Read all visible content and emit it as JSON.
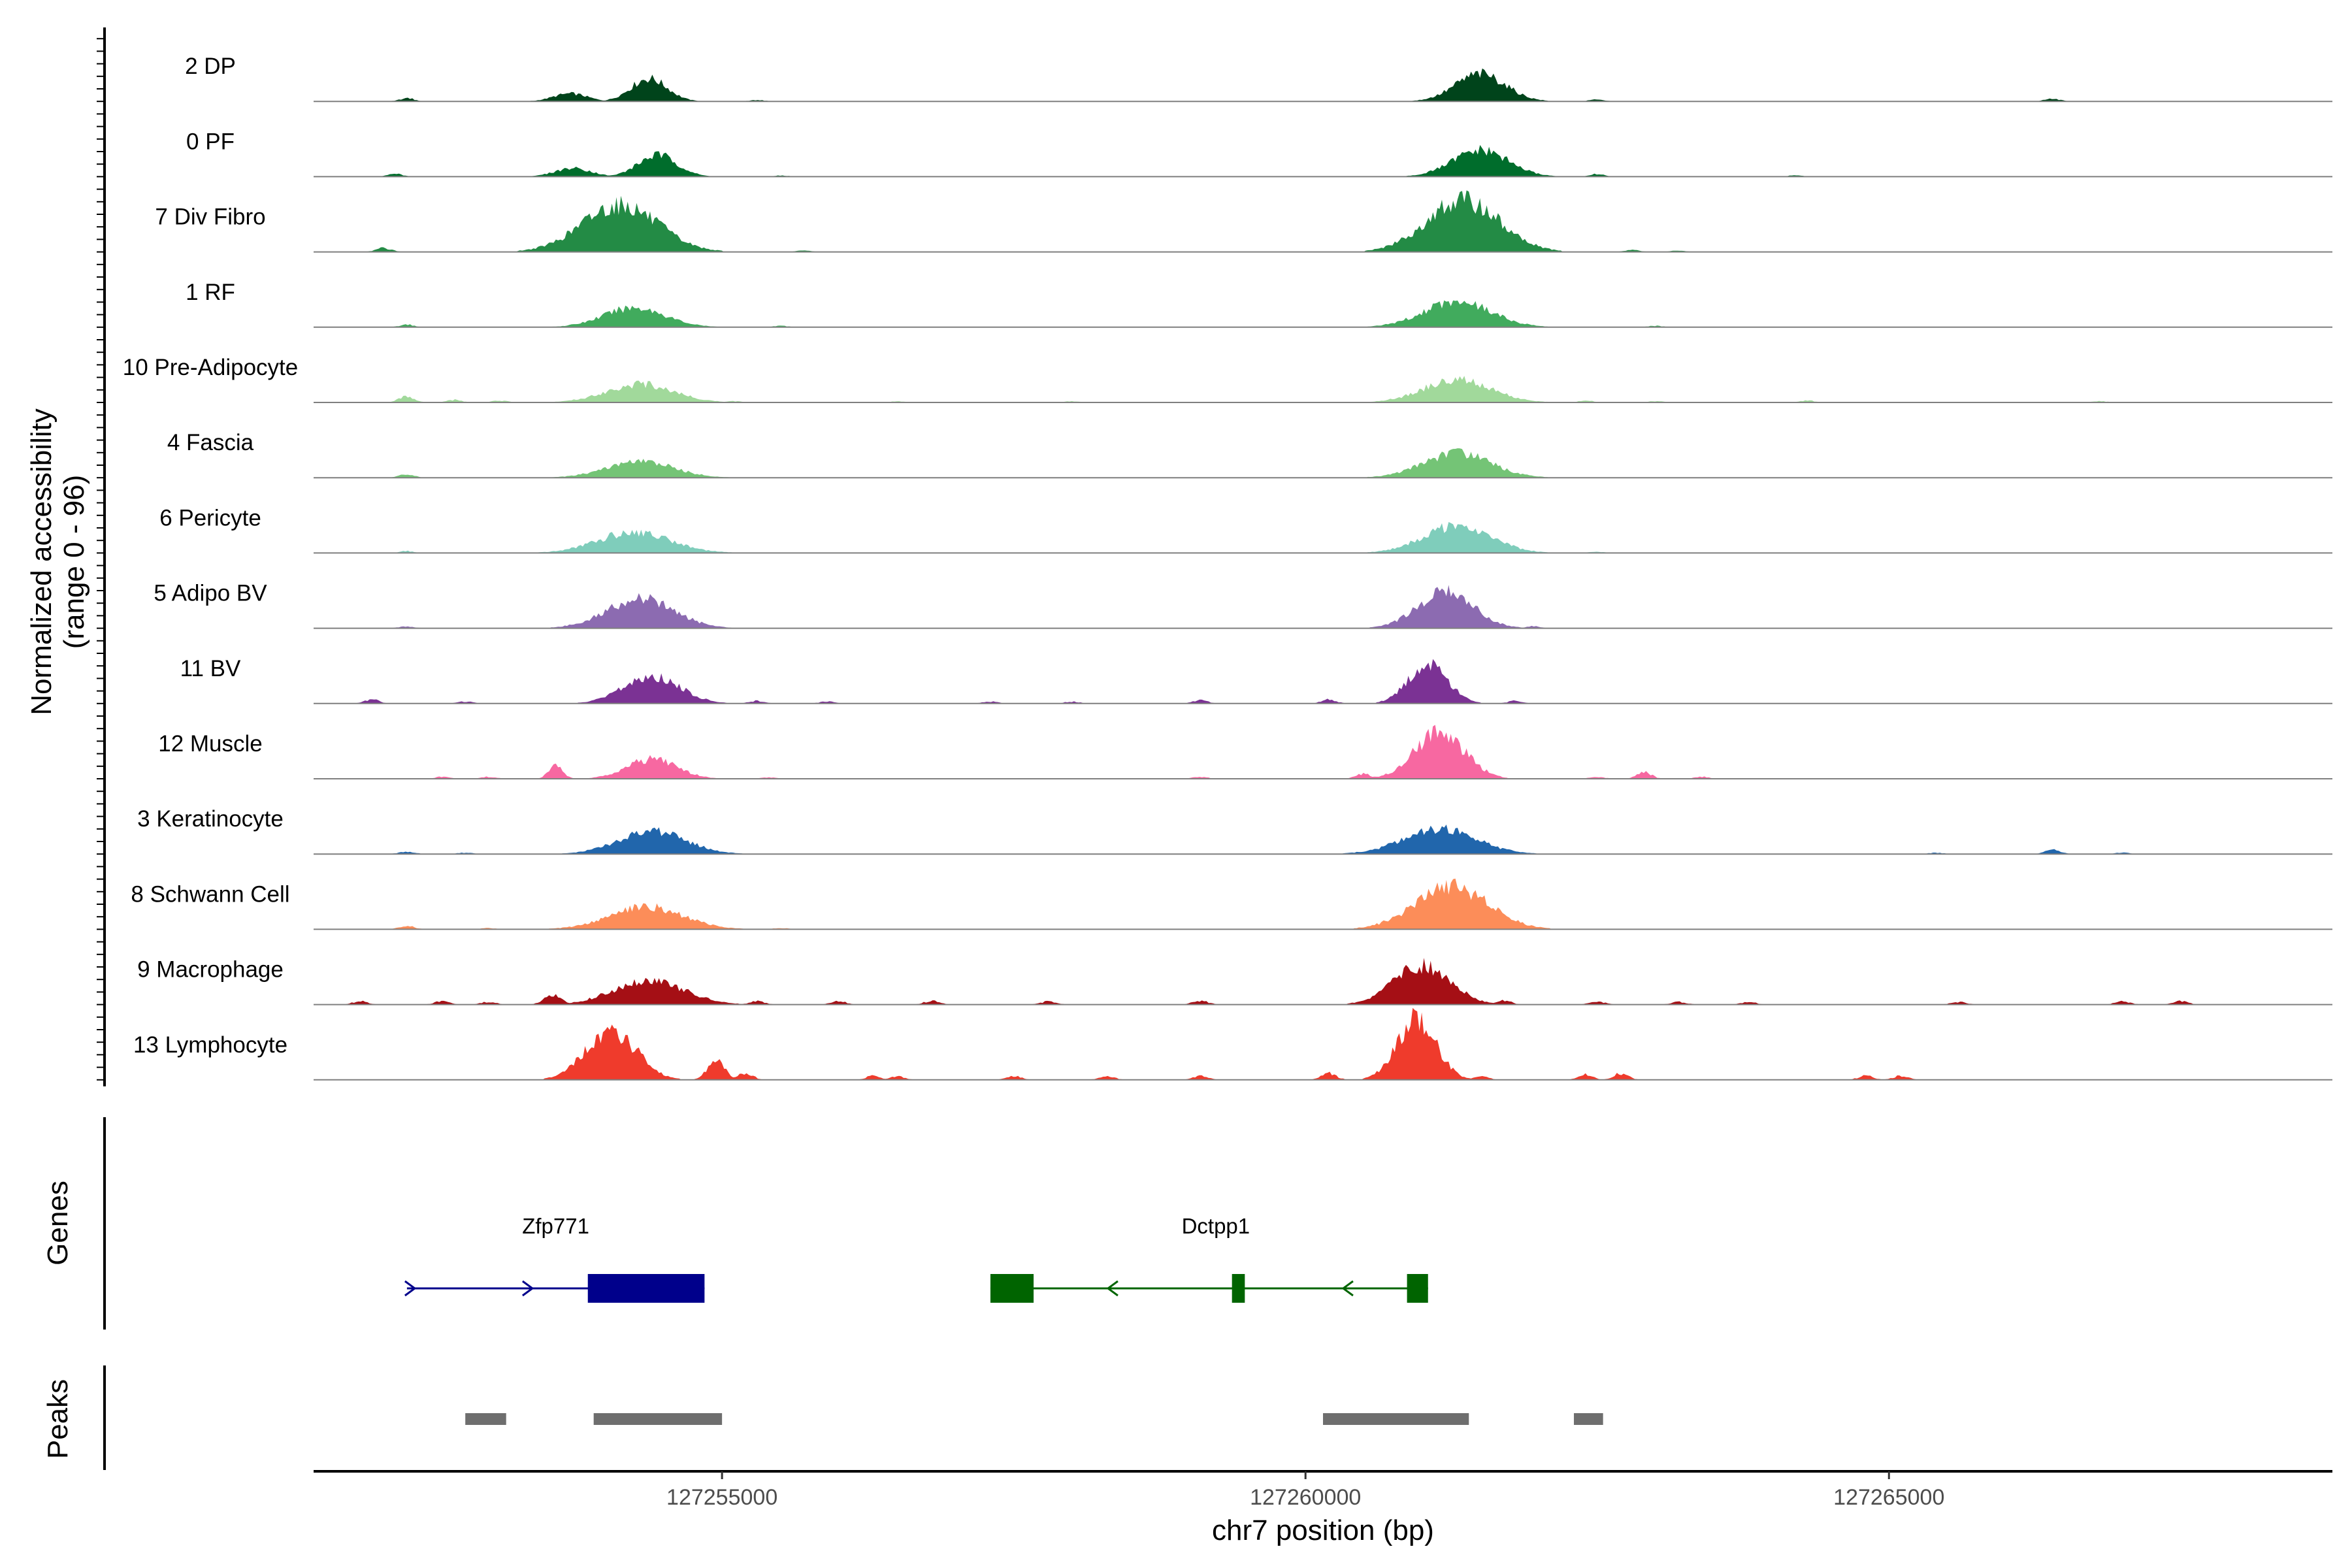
{
  "chart_data": {
    "type": "area",
    "title": "",
    "chromosome": "chr7",
    "xlabel": "chr7 position (bp)",
    "ylabel": "Normalized accessibility",
    "ylabel_range": "(range 0 - 96)",
    "y_range": [
      0,
      96
    ],
    "x_range": [
      127251500,
      127268800
    ],
    "x_ticks": [
      127255000,
      127260000,
      127265000
    ],
    "x_tick_labels": [
      "127255000",
      "127260000",
      "127265000"
    ],
    "tracks": [
      {
        "name": "2 DP",
        "color": "#00441b",
        "peaks": [
          [
            127253400,
            127254000,
            0.12
          ],
          [
            127254050,
            127254700,
            0.35
          ],
          [
            127254300,
            127254600,
            0.18
          ],
          [
            127261050,
            127261950,
            0.42
          ]
        ],
        "bumps": [
          [
            127252300,
            0.05
          ],
          [
            127255300,
            0.02
          ],
          [
            127262500,
            0.03
          ],
          [
            127266400,
            0.04
          ]
        ]
      },
      {
        "name": "0 PF",
        "color": "#006d2c",
        "peaks": [
          [
            127253400,
            127254050,
            0.13
          ],
          [
            127254100,
            127254800,
            0.33
          ],
          [
            127261000,
            127262000,
            0.4
          ]
        ],
        "bumps": [
          [
            127252200,
            0.04
          ],
          [
            127255500,
            0.02
          ],
          [
            127262500,
            0.04
          ],
          [
            127264200,
            0.02
          ]
        ]
      },
      {
        "name": "7 Div Fibro",
        "color": "#238b45",
        "peaks": [
          [
            127253450,
            127254800,
            0.72
          ],
          [
            127260700,
            127262000,
            0.78
          ]
        ],
        "bumps": [
          [
            127252100,
            0.06
          ],
          [
            127255700,
            0.02
          ],
          [
            127262800,
            0.03
          ],
          [
            127263200,
            0.02
          ]
        ]
      },
      {
        "name": "1 RF",
        "color": "#41ab5d",
        "peaks": [
          [
            127253700,
            127254800,
            0.3
          ],
          [
            127260700,
            127261900,
            0.4
          ]
        ],
        "bumps": [
          [
            127252300,
            0.04
          ],
          [
            127255500,
            0.02
          ],
          [
            127263000,
            0.02
          ]
        ]
      },
      {
        "name": "10 Pre-Adipocyte",
        "color": "#a1d99b",
        "peaks": [
          [
            127253700,
            127254900,
            0.28
          ],
          [
            127260700,
            127261900,
            0.35
          ]
        ],
        "bumps": [
          [
            127252300,
            0.1
          ],
          [
            127252700,
            0.04
          ],
          [
            127253100,
            0.03
          ],
          [
            127255100,
            0.02
          ],
          [
            127256500,
            0.02
          ],
          [
            127258000,
            0.02
          ],
          [
            127262400,
            0.03
          ],
          [
            127263000,
            0.02
          ],
          [
            127264300,
            0.03
          ],
          [
            127266800,
            0.02
          ]
        ]
      },
      {
        "name": "4 Fascia",
        "color": "#74c476",
        "peaks": [
          [
            127253700,
            127254900,
            0.25
          ],
          [
            127260700,
            127261900,
            0.38
          ]
        ],
        "bumps": [
          [
            127252300,
            0.05
          ]
        ]
      },
      {
        "name": "6 Pericyte",
        "color": "#7fcdbb",
        "peaks": [
          [
            127253600,
            127254900,
            0.32
          ],
          [
            127260700,
            127261900,
            0.42
          ]
        ],
        "bumps": [
          [
            127252300,
            0.03
          ],
          [
            127262500,
            0.02
          ]
        ]
      },
      {
        "name": "5 Adipo BV",
        "color": "#8c6bb1",
        "peaks": [
          [
            127253700,
            127254900,
            0.45
          ],
          [
            127260700,
            127261700,
            0.55
          ]
        ],
        "bumps": [
          [
            127252300,
            0.03
          ],
          [
            127261950,
            0.03
          ]
        ]
      },
      {
        "name": "11 BV",
        "color": "#7b3294",
        "peaks": [
          [
            127253900,
            127254900,
            0.42
          ],
          [
            127260700,
            127261400,
            0.62
          ]
        ],
        "bumps": [
          [
            127252000,
            0.06
          ],
          [
            127252800,
            0.03
          ],
          [
            127255300,
            0.04
          ],
          [
            127255900,
            0.03
          ],
          [
            127257300,
            0.03
          ],
          [
            127258000,
            0.03
          ],
          [
            127259100,
            0.05
          ],
          [
            127260200,
            0.06
          ],
          [
            127261800,
            0.04
          ]
        ]
      },
      {
        "name": "12 Muscle",
        "color": "#f768a1",
        "peaks": [
          [
            127253450,
            127253700,
            0.2
          ],
          [
            127253950,
            127254850,
            0.3
          ],
          [
            127260700,
            127261600,
            0.7
          ]
        ],
        "bumps": [
          [
            127252600,
            0.03
          ],
          [
            127253000,
            0.03
          ],
          [
            127255400,
            0.02
          ],
          [
            127259100,
            0.03
          ],
          [
            127260500,
            0.08
          ],
          [
            127262500,
            0.03
          ],
          [
            127262900,
            0.1
          ],
          [
            127263400,
            0.03
          ]
        ]
      },
      {
        "name": "3 Keratinocyte",
        "color": "#2166ac",
        "peaks": [
          [
            127253800,
            127255000,
            0.35
          ],
          [
            127260500,
            127261800,
            0.38
          ]
        ],
        "bumps": [
          [
            127252300,
            0.04
          ],
          [
            127252800,
            0.02
          ],
          [
            127265400,
            0.02
          ],
          [
            127266400,
            0.08
          ],
          [
            127267000,
            0.02
          ]
        ]
      },
      {
        "name": "8 Schwann Cell",
        "color": "#fc8d59",
        "peaks": [
          [
            127253700,
            127255000,
            0.35
          ],
          [
            127260600,
            127261900,
            0.65
          ]
        ],
        "bumps": [
          [
            127252300,
            0.05
          ],
          [
            127253000,
            0.02
          ],
          [
            127255500,
            0.02
          ]
        ]
      },
      {
        "name": "9 Macrophage",
        "color": "#a50f15",
        "peaks": [
          [
            127253400,
            127253700,
            0.15
          ],
          [
            127253750,
            127255000,
            0.38
          ],
          [
            127260500,
            127261500,
            0.6
          ]
        ],
        "bumps": [
          [
            127251900,
            0.05
          ],
          [
            127252600,
            0.05
          ],
          [
            127253000,
            0.04
          ],
          [
            127255300,
            0.05
          ],
          [
            127256000,
            0.05
          ],
          [
            127256800,
            0.06
          ],
          [
            127257800,
            0.05
          ],
          [
            127259100,
            0.06
          ],
          [
            127261700,
            0.06
          ],
          [
            127262500,
            0.05
          ],
          [
            127263200,
            0.04
          ],
          [
            127263800,
            0.04
          ],
          [
            127265600,
            0.04
          ],
          [
            127267000,
            0.05
          ],
          [
            127267500,
            0.05
          ]
        ]
      },
      {
        "name": "13 Lymphocyte",
        "color": "#ef3b2c",
        "peaks": [
          [
            127253600,
            127254500,
            0.75
          ],
          [
            127254800,
            127255100,
            0.3
          ],
          [
            127260600,
            127261300,
            0.92
          ]
        ],
        "bumps": [
          [
            127255200,
            0.1
          ],
          [
            127256300,
            0.06
          ],
          [
            127256500,
            0.06
          ],
          [
            127257500,
            0.06
          ],
          [
            127258300,
            0.06
          ],
          [
            127259100,
            0.06
          ],
          [
            127260200,
            0.1
          ],
          [
            127261500,
            0.06
          ],
          [
            127262400,
            0.08
          ],
          [
            127262700,
            0.1
          ],
          [
            127264800,
            0.06
          ],
          [
            127265100,
            0.06
          ]
        ]
      }
    ],
    "genes_label": "Genes",
    "genes": [
      {
        "name": "Zfp771",
        "strand": "+",
        "start": 127252300,
        "end": 127254850,
        "color": "#00008b",
        "exons": [
          [
            127253850,
            127254850
          ]
        ]
      },
      {
        "name": "Dctpp1",
        "strand": "-",
        "start": 127257300,
        "end": 127261050,
        "color": "#006400",
        "exons": [
          [
            127257300,
            127257670
          ],
          [
            127259370,
            127259480
          ],
          [
            127260870,
            127261050
          ]
        ]
      }
    ],
    "peaks_label": "Peaks",
    "peak_regions": [
      [
        127252800,
        127253150
      ],
      [
        127253900,
        127255000
      ],
      [
        127260150,
        127261400
      ],
      [
        127262300,
        127262550
      ]
    ],
    "peak_color": "#6e6e6e"
  }
}
